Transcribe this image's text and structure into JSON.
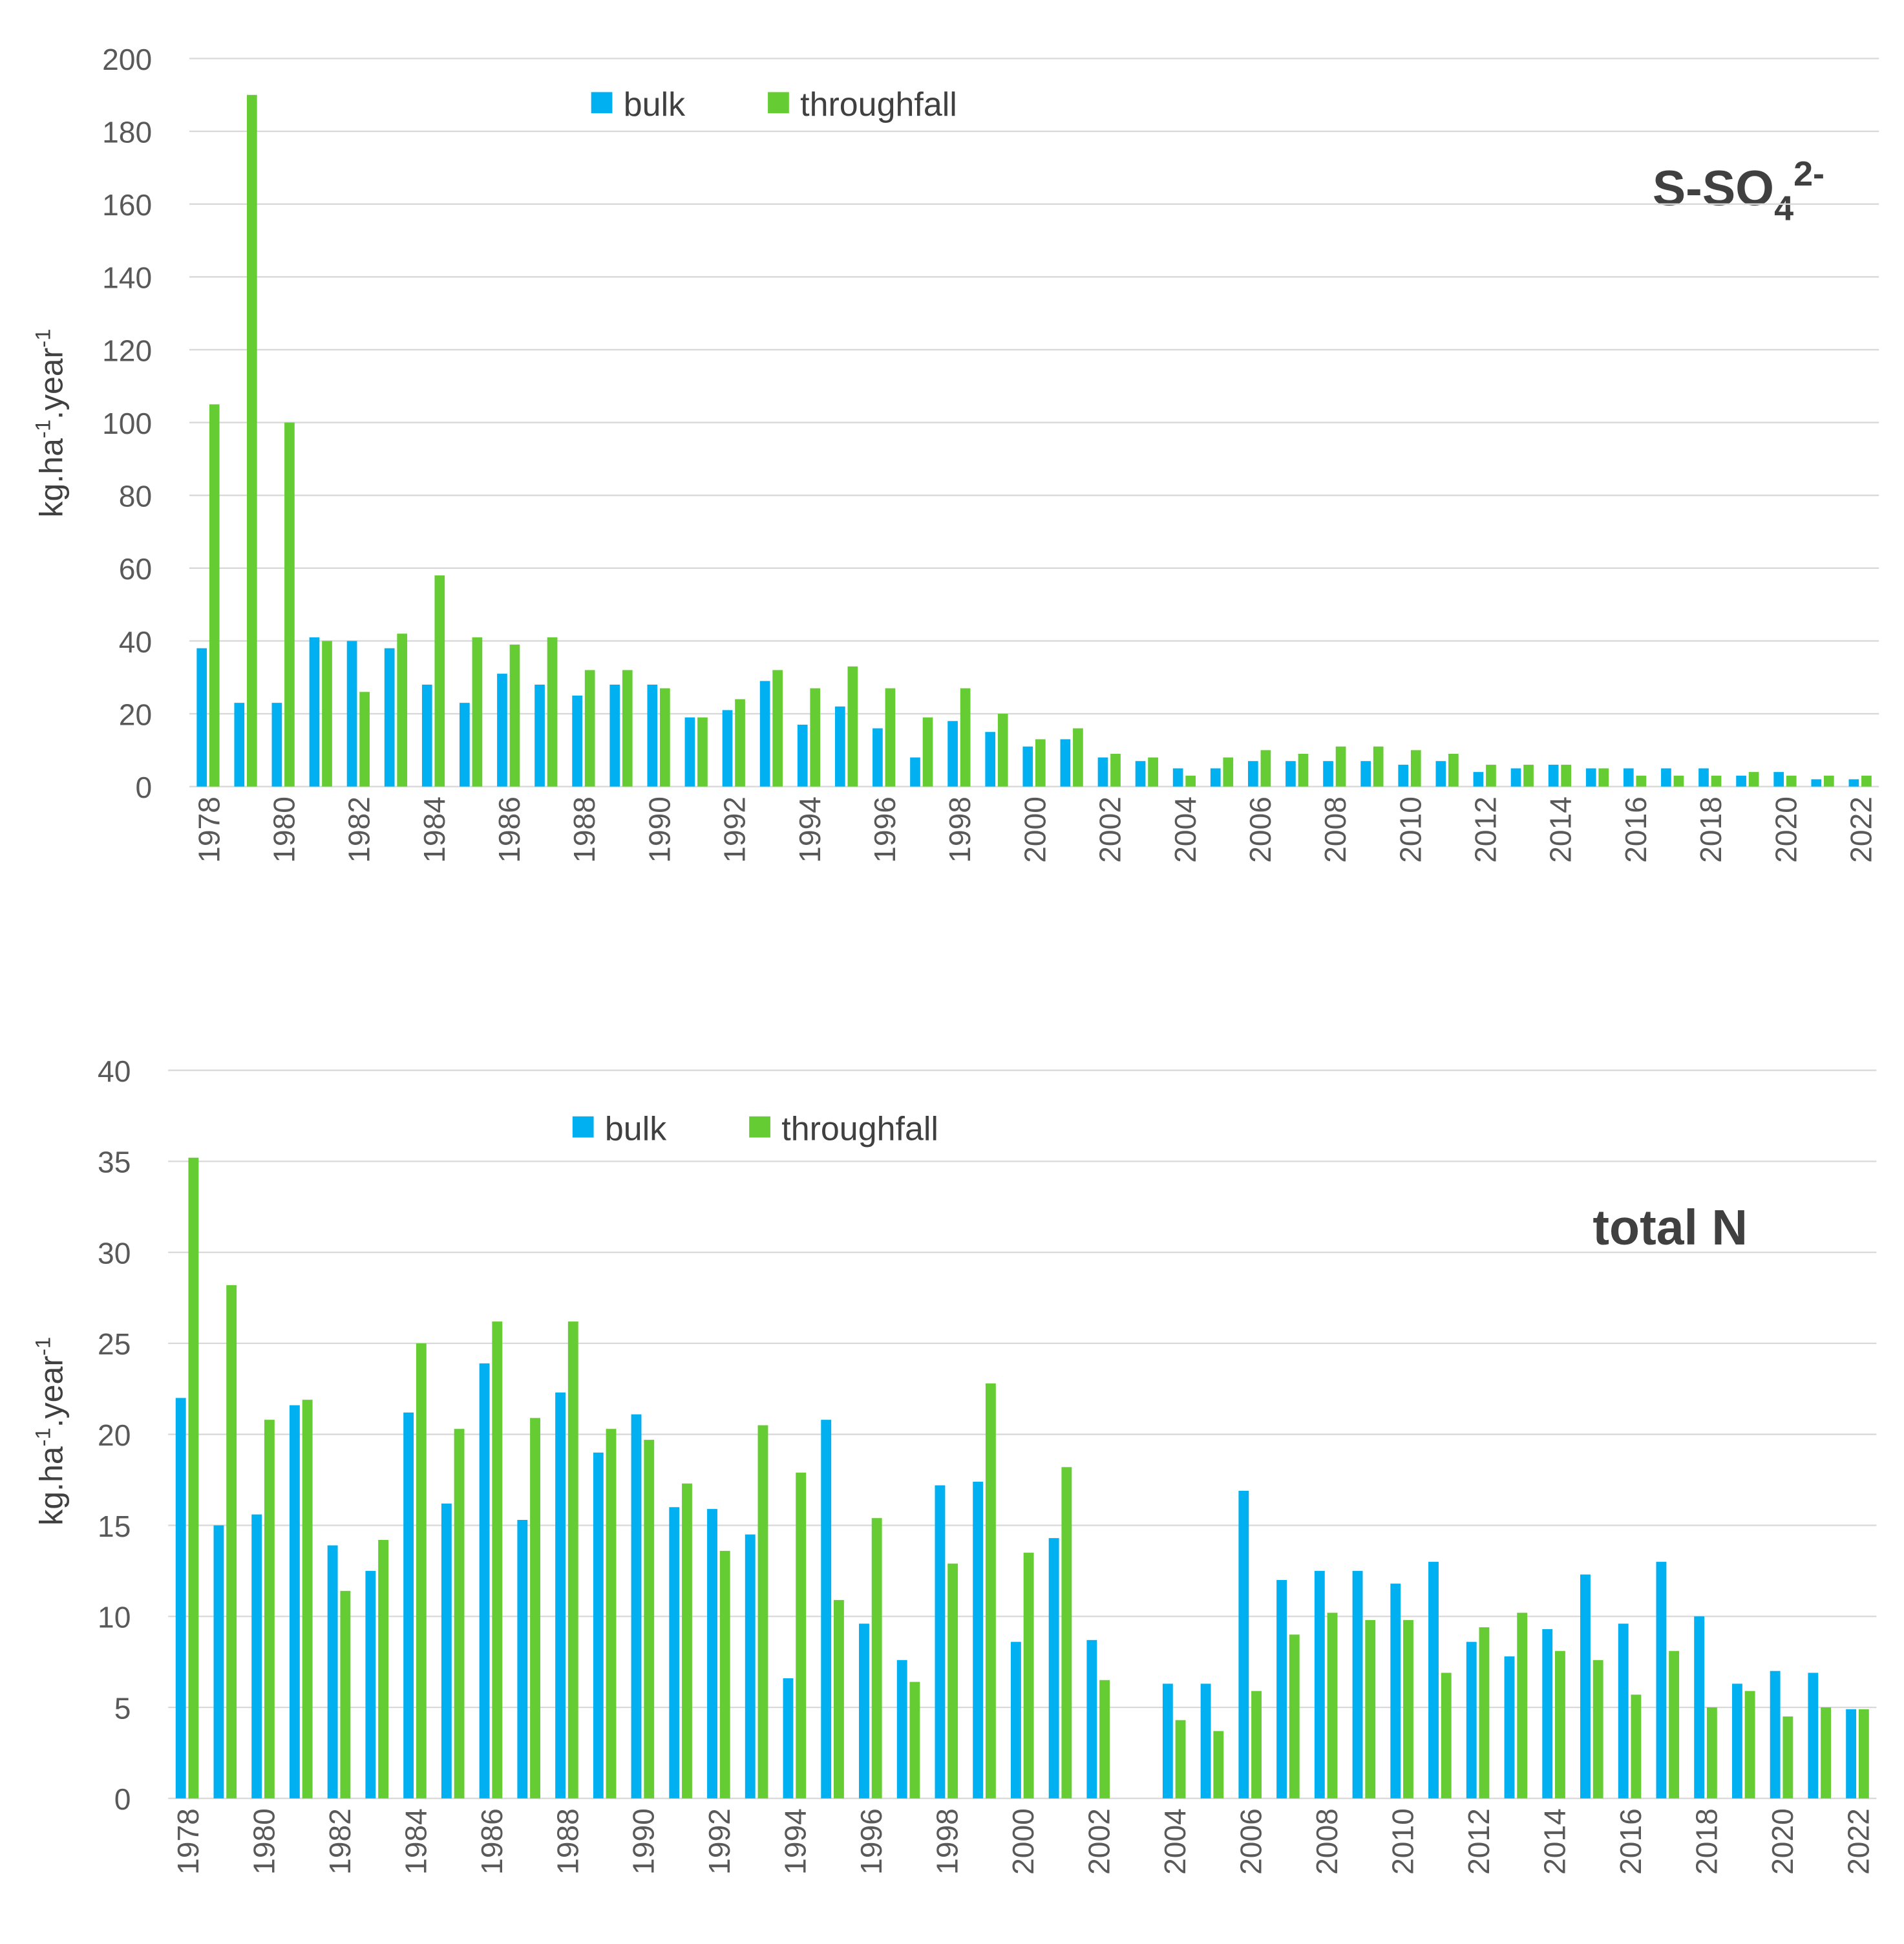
{
  "colors": {
    "bulk": "#00b0f0",
    "throughfall": "#66cc33"
  },
  "chart_data": [
    {
      "type": "bar",
      "title_main": "S-SO",
      "title_sub": "4",
      "title_sup": "2-",
      "ylabel_main": "kg.ha",
      "ylabel_sup1": "-1",
      "ylabel_mid": ".year",
      "ylabel_sup2": "-1",
      "ylim": [
        0,
        200
      ],
      "yticks": [
        0,
        20,
        40,
        60,
        80,
        100,
        120,
        140,
        160,
        180,
        200
      ],
      "legend_placement": "top-center",
      "categories": [
        1978,
        1979,
        1980,
        1981,
        1982,
        1983,
        1984,
        1985,
        1986,
        1987,
        1988,
        1989,
        1990,
        1991,
        1992,
        1993,
        1994,
        1995,
        1996,
        1997,
        1998,
        1999,
        2000,
        2001,
        2002,
        2003,
        2004,
        2005,
        2006,
        2007,
        2008,
        2009,
        2010,
        2011,
        2012,
        2013,
        2014,
        2015,
        2016,
        2017,
        2018,
        2019,
        2020,
        2021,
        2022
      ],
      "xticks": [
        "1978",
        "1980",
        "1982",
        "1984",
        "1986",
        "1988",
        "1990",
        "1992",
        "1994",
        "1996",
        "1998",
        "2000",
        "2002",
        "2004",
        "2006",
        "2008",
        "2010",
        "2012",
        "2014",
        "2016",
        "2018",
        "2020",
        "2022"
      ],
      "series": [
        {
          "name": "bulk",
          "values": [
            38,
            23,
            23,
            41,
            40,
            38,
            28,
            23,
            31,
            28,
            25,
            28,
            28,
            19,
            21,
            29,
            17,
            22,
            16,
            8,
            18,
            15,
            11,
            13,
            8,
            7,
            5,
            5,
            7,
            7,
            7,
            7,
            6,
            7,
            4,
            5,
            6,
            5,
            5,
            5,
            5,
            3,
            4,
            2,
            2
          ]
        },
        {
          "name": "throughfall",
          "values": [
            105,
            190,
            100,
            40,
            26,
            42,
            58,
            41,
            39,
            41,
            32,
            32,
            27,
            19,
            24,
            32,
            27,
            33,
            27,
            19,
            27,
            20,
            13,
            16,
            9,
            8,
            3,
            8,
            10,
            9,
            11,
            11,
            10,
            9,
            6,
            6,
            6,
            5,
            3,
            3,
            3,
            4,
            3,
            3,
            3
          ]
        }
      ]
    },
    {
      "type": "bar",
      "title": "total N",
      "ylabel_main": "kg.ha",
      "ylabel_sup1": "-1",
      "ylabel_mid": ".year",
      "ylabel_sup2": "-1",
      "ylim": [
        0,
        40
      ],
      "yticks": [
        0,
        5,
        10,
        15,
        20,
        25,
        30,
        35,
        40
      ],
      "legend_placement": "top-center",
      "categories": [
        1978,
        1979,
        1980,
        1981,
        1982,
        1983,
        1984,
        1985,
        1986,
        1987,
        1988,
        1989,
        1990,
        1991,
        1992,
        1993,
        1994,
        1995,
        1996,
        1997,
        1998,
        1999,
        2000,
        2001,
        2002,
        2003,
        2004,
        2005,
        2006,
        2007,
        2008,
        2009,
        2010,
        2011,
        2012,
        2013,
        2014,
        2015,
        2016,
        2017,
        2018,
        2019,
        2020,
        2021,
        2022
      ],
      "xticks": [
        "1978",
        "1980",
        "1982",
        "1984",
        "1986",
        "1988",
        "1990",
        "1992",
        "1994",
        "1996",
        "1998",
        "2000",
        "2002",
        "2004",
        "2006",
        "2008",
        "2010",
        "2012",
        "2014",
        "2016",
        "2018",
        "2020",
        "2022"
      ],
      "series": [
        {
          "name": "bulk",
          "values": [
            22,
            15,
            15.6,
            21.6,
            13.9,
            12.5,
            21.2,
            16.2,
            23.9,
            15.3,
            22.3,
            19,
            21.1,
            16,
            15.9,
            14.5,
            6.6,
            20.8,
            9.6,
            7.6,
            17.2,
            17.4,
            8.6,
            14.3,
            8.7,
            null,
            6.3,
            6.3,
            16.9,
            12,
            12.5,
            12.5,
            11.8,
            13,
            8.6,
            7.8,
            9.3,
            12.3,
            9.6,
            13,
            10,
            6.3,
            7,
            6.9,
            4.9
          ]
        },
        {
          "name": "throughfall",
          "values": [
            35.2,
            28.2,
            20.8,
            21.9,
            11.4,
            14.2,
            25,
            20.3,
            26.2,
            20.9,
            26.2,
            20.3,
            19.7,
            17.3,
            13.6,
            20.5,
            17.9,
            10.9,
            15.4,
            6.4,
            12.9,
            22.8,
            13.5,
            18.2,
            6.5,
            null,
            4.3,
            3.7,
            5.9,
            9,
            10.2,
            9.8,
            9.8,
            6.9,
            9.4,
            10.2,
            8.1,
            7.6,
            5.7,
            8.1,
            5,
            5.9,
            4.5,
            5,
            4.9
          ]
        }
      ]
    }
  ]
}
